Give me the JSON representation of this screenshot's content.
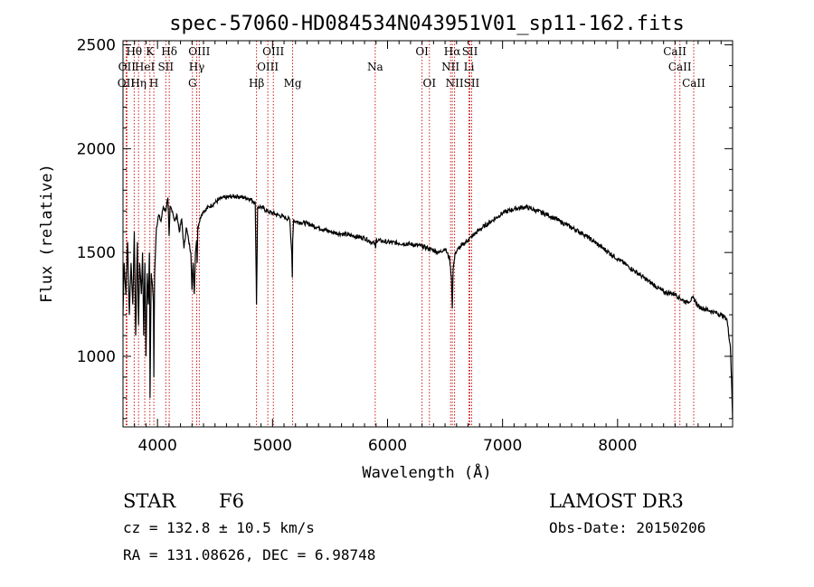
{
  "chart_data": {
    "type": "line",
    "title": "spec-57060-HD084534N043951V01_sp11-162.fits",
    "xlabel": "Wavelength (Å)",
    "ylabel": "Flux (relative)",
    "xlim": [
      3700,
      9000
    ],
    "ylim": [
      660,
      2520
    ],
    "xticks": [
      4000,
      5000,
      6000,
      7000,
      8000
    ],
    "yticks": [
      1000,
      1500,
      2000,
      2500
    ],
    "series": [
      {
        "name": "spectrum",
        "color": "#000000",
        "x": [
          3700,
          3710,
          3725,
          3740,
          3755,
          3770,
          3785,
          3798,
          3810,
          3825,
          3835,
          3845,
          3860,
          3870,
          3880,
          3890,
          3900,
          3910,
          3920,
          3930,
          3935,
          3945,
          3955,
          3965,
          3968,
          3975,
          3990,
          4010,
          4030,
          4050,
          4070,
          4090,
          4101,
          4110,
          4130,
          4150,
          4170,
          4190,
          4210,
          4230,
          4250,
          4270,
          4290,
          4300,
          4310,
          4320,
          4330,
          4340,
          4345,
          4350,
          4360,
          4380,
          4400,
          4450,
          4500,
          4550,
          4600,
          4650,
          4700,
          4750,
          4800,
          4850,
          4855,
          4861,
          4866,
          4870,
          4900,
          4950,
          5000,
          5050,
          5100,
          5150,
          5167,
          5172,
          5175,
          5183,
          5190,
          5200,
          5300,
          5400,
          5500,
          5600,
          5700,
          5800,
          5890,
          5896,
          5900,
          6000,
          6100,
          6200,
          6300,
          6350,
          6400,
          6450,
          6500,
          6540,
          6555,
          6563,
          6570,
          6590,
          6620,
          6700,
          6800,
          6900,
          7000,
          7100,
          7200,
          7300,
          7400,
          7500,
          7600,
          7700,
          7800,
          7900,
          8000,
          8100,
          8200,
          8300,
          8400,
          8500,
          8542,
          8600,
          8662,
          8700,
          8800,
          8900,
          8950,
          8980,
          8990,
          9000
        ],
        "y": [
          1200,
          1450,
          1300,
          1550,
          1200,
          1450,
          1250,
          1600,
          1100,
          1550,
          1150,
          1450,
          1300,
          1500,
          1100,
          1450,
          1000,
          1400,
          1250,
          1500,
          800,
          1400,
          1350,
          1250,
          900,
          1400,
          1620,
          1680,
          1650,
          1720,
          1700,
          1760,
          1580,
          1720,
          1700,
          1650,
          1680,
          1600,
          1660,
          1520,
          1620,
          1560,
          1500,
          1320,
          1450,
          1300,
          1500,
          1560,
          1450,
          1620,
          1640,
          1680,
          1700,
          1720,
          1740,
          1760,
          1765,
          1770,
          1770,
          1765,
          1760,
          1740,
          1500,
          1250,
          1500,
          1720,
          1720,
          1700,
          1690,
          1680,
          1670,
          1660,
          1500,
          1380,
          1560,
          1660,
          1650,
          1650,
          1640,
          1620,
          1600,
          1590,
          1580,
          1570,
          1540,
          1520,
          1560,
          1550,
          1545,
          1540,
          1530,
          1520,
          1510,
          1500,
          1520,
          1470,
          1380,
          1230,
          1420,
          1500,
          1520,
          1560,
          1610,
          1650,
          1690,
          1710,
          1720,
          1700,
          1680,
          1650,
          1620,
          1590,
          1550,
          1510,
          1470,
          1430,
          1390,
          1350,
          1310,
          1300,
          1280,
          1260,
          1280,
          1240,
          1220,
          1200,
          1180,
          1050,
          900,
          700
        ]
      }
    ],
    "lines": [
      {
        "wl": 3727,
        "label": "OII",
        "row": 3
      },
      {
        "wl": 3734,
        "label": "OII",
        "row": 2
      },
      {
        "wl": 3797,
        "label": "Hθ",
        "row": 1
      },
      {
        "wl": 3835,
        "label": "Hη",
        "row": 3
      },
      {
        "wl": 3889,
        "label": "HeI",
        "row": 2
      },
      {
        "wl": 3934,
        "label": "K",
        "row": 1
      },
      {
        "wl": 3968,
        "label": "H",
        "row": 3
      },
      {
        "wl": 4072,
        "label": "SII",
        "row": 2
      },
      {
        "wl": 4102,
        "label": "Hδ",
        "row": 1
      },
      {
        "wl": 4304,
        "label": "G",
        "row": 3
      },
      {
        "wl": 4341,
        "label": "Hγ",
        "row": 2
      },
      {
        "wl": 4363,
        "label": "OIII",
        "row": 1
      },
      {
        "wl": 4861,
        "label": "Hβ",
        "row": 3
      },
      {
        "wl": 4959,
        "label": "OIII",
        "row": 2
      },
      {
        "wl": 5007,
        "label": "OIII",
        "row": 1
      },
      {
        "wl": 5175,
        "label": "Mg",
        "row": 3
      },
      {
        "wl": 5893,
        "label": "Na",
        "row": 2
      },
      {
        "wl": 6300,
        "label": "OI",
        "row": 1
      },
      {
        "wl": 6364,
        "label": "OI",
        "row": 3
      },
      {
        "wl": 6548,
        "label": "NII",
        "row": 2
      },
      {
        "wl": 6563,
        "label": "Hα",
        "row": 1
      },
      {
        "wl": 6583,
        "label": "NII",
        "row": 3
      },
      {
        "wl": 6708,
        "label": "Li",
        "row": 2
      },
      {
        "wl": 6716,
        "label": "SII",
        "row": 1
      },
      {
        "wl": 6731,
        "label": "SII",
        "row": 3
      },
      {
        "wl": 8498,
        "label": "CaII",
        "row": 1
      },
      {
        "wl": 8542,
        "label": "CaII",
        "row": 2
      },
      {
        "wl": 8662,
        "label": "CaII",
        "row": 3
      }
    ]
  },
  "info": {
    "object_class": "STAR",
    "subclass": "F6",
    "survey": "LAMOST DR3",
    "cz": "cz = 132.8 ± 10.5 km/s",
    "obs_date": "Obs-Date: 20150206",
    "coords": "RA = 131.08626, DEC =   6.98748"
  },
  "colors": {
    "spectrum": "#000000",
    "line_marker": "#cc0000",
    "axes": "#000000"
  }
}
